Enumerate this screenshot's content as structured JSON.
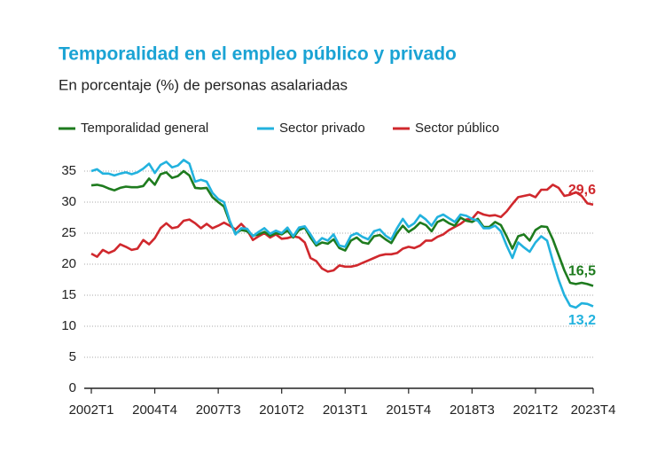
{
  "chart_data": {
    "type": "line",
    "title": "Temporalidad en el empleo público y privado",
    "subtitle": "En porcentaje (%) de personas asalariadas",
    "legend": "top",
    "grid": true,
    "ylim": [
      0,
      38
    ],
    "yticks": [
      0,
      5,
      10,
      15,
      20,
      25,
      30,
      35
    ],
    "categories": [
      "2002T1",
      null,
      null,
      null,
      null,
      null,
      null,
      null,
      null,
      null,
      null,
      "2004T4",
      null,
      null,
      null,
      null,
      null,
      null,
      null,
      null,
      null,
      null,
      "2007T3",
      null,
      null,
      null,
      null,
      null,
      null,
      null,
      null,
      null,
      null,
      "2010T2",
      null,
      null,
      null,
      null,
      null,
      null,
      null,
      null,
      null,
      null,
      "2013T1",
      null,
      null,
      null,
      null,
      null,
      null,
      null,
      null,
      null,
      null,
      "2015T4",
      null,
      null,
      null,
      null,
      null,
      null,
      null,
      null,
      null,
      null,
      "2018T3",
      null,
      null,
      null,
      null,
      null,
      null,
      null,
      null,
      null,
      null,
      "2021T2",
      null,
      null,
      null,
      null,
      null,
      null,
      null,
      null,
      null,
      "2023T4"
    ],
    "series": [
      {
        "name": "Temporalidad general",
        "color": "#1e7b1e",
        "values": [
          32.7,
          32.8,
          32.6,
          32.2,
          31.9,
          32.3,
          32.5,
          32.4,
          32.4,
          32.6,
          33.8,
          32.8,
          34.5,
          34.8,
          33.9,
          34.2,
          35.0,
          34.3,
          32.3,
          32.2,
          32.3,
          30.8,
          30.0,
          29.3,
          26.8,
          25.0,
          25.5,
          25.3,
          24.6,
          24.8,
          25.2,
          24.6,
          25.0,
          24.8,
          25.4,
          24.3,
          25.5,
          25.9,
          24.3,
          23.0,
          23.5,
          23.3,
          24.0,
          22.6,
          22.2,
          23.8,
          24.3,
          23.5,
          23.3,
          24.5,
          24.7,
          24.0,
          23.4,
          25.0,
          26.2,
          25.2,
          25.8,
          26.7,
          26.3,
          25.3,
          26.8,
          27.2,
          26.6,
          26.2,
          27.5,
          27.0,
          26.8,
          27.3,
          26.0,
          26.0,
          26.8,
          26.3,
          24.5,
          22.5,
          24.5,
          24.8,
          23.8,
          25.5,
          26.1,
          26.0,
          24.0,
          21.5,
          19.0,
          17.0,
          16.8,
          17.0,
          16.8,
          16.5
        ],
        "value_labels": [
          null,
          null,
          null,
          null,
          null,
          null,
          null,
          null,
          null,
          null,
          null,
          null,
          null,
          null,
          null,
          null,
          null,
          null,
          null,
          null,
          null,
          null,
          null,
          null,
          null,
          null,
          null,
          null,
          null,
          null,
          null,
          null,
          null,
          null,
          null,
          null,
          null,
          null,
          null,
          null,
          null,
          null,
          null,
          null,
          null,
          null,
          null,
          null,
          null,
          null,
          null,
          null,
          null,
          null,
          null,
          null,
          null,
          null,
          null,
          null,
          null,
          null,
          null,
          null,
          null,
          null,
          null,
          null,
          null,
          null,
          null,
          null,
          null,
          null,
          null,
          null,
          null,
          null,
          null,
          null,
          null,
          null,
          null,
          null,
          null,
          null,
          null,
          "16,5"
        ]
      },
      {
        "name": "Sector privado",
        "color": "#22b2de",
        "values": [
          35.0,
          35.3,
          34.6,
          34.6,
          34.3,
          34.6,
          34.8,
          34.5,
          34.8,
          35.4,
          36.2,
          34.7,
          36.0,
          36.5,
          35.6,
          35.9,
          36.8,
          36.2,
          33.3,
          33.6,
          33.3,
          31.5,
          30.5,
          30.0,
          27.0,
          24.8,
          25.8,
          25.7,
          24.5,
          25.2,
          25.8,
          24.9,
          25.4,
          25.0,
          25.9,
          24.5,
          25.9,
          26.1,
          24.8,
          23.3,
          24.2,
          23.8,
          24.8,
          23.0,
          22.8,
          24.6,
          25.0,
          24.4,
          24.0,
          25.3,
          25.6,
          24.6,
          24.0,
          25.8,
          27.3,
          26.0,
          26.6,
          27.9,
          27.2,
          26.2,
          27.6,
          28.0,
          27.4,
          26.8,
          28.0,
          27.8,
          27.3,
          27.0,
          25.8,
          25.8,
          26.2,
          25.3,
          23.0,
          21.0,
          23.5,
          22.7,
          22.0,
          23.5,
          24.5,
          23.8,
          20.5,
          17.5,
          15.0,
          13.3,
          13.0,
          13.7,
          13.6,
          13.2
        ],
        "value_labels": [
          null,
          null,
          null,
          null,
          null,
          null,
          null,
          null,
          null,
          null,
          null,
          null,
          null,
          null,
          null,
          null,
          null,
          null,
          null,
          null,
          null,
          null,
          null,
          null,
          null,
          null,
          null,
          null,
          null,
          null,
          null,
          null,
          null,
          null,
          null,
          null,
          null,
          null,
          null,
          null,
          null,
          null,
          null,
          null,
          null,
          null,
          null,
          null,
          null,
          null,
          null,
          null,
          null,
          null,
          null,
          null,
          null,
          null,
          null,
          null,
          null,
          null,
          null,
          null,
          null,
          null,
          null,
          null,
          null,
          null,
          null,
          null,
          null,
          null,
          null,
          null,
          null,
          null,
          null,
          null,
          null,
          null,
          null,
          null,
          null,
          null,
          null,
          "13,2"
        ]
      },
      {
        "name": "Sector público",
        "color": "#d0282d",
        "values": [
          21.7,
          21.2,
          22.3,
          21.8,
          22.2,
          23.2,
          22.8,
          22.3,
          22.5,
          23.9,
          23.2,
          24.2,
          25.8,
          26.6,
          25.8,
          26.0,
          27.0,
          27.2,
          26.6,
          25.8,
          26.5,
          25.8,
          26.2,
          26.7,
          26.2,
          25.6,
          26.5,
          25.5,
          23.9,
          24.5,
          25.0,
          24.3,
          24.8,
          24.1,
          24.2,
          24.5,
          24.3,
          23.5,
          21.0,
          20.5,
          19.3,
          18.8,
          19.0,
          19.8,
          19.6,
          19.6,
          19.8,
          20.2,
          20.6,
          21.0,
          21.4,
          21.6,
          21.6,
          21.8,
          22.5,
          22.8,
          22.6,
          23.0,
          23.8,
          23.8,
          24.4,
          24.8,
          25.5,
          26.0,
          26.5,
          27.2,
          27.3,
          28.4,
          28.0,
          27.8,
          27.9,
          27.6,
          28.5,
          29.7,
          30.8,
          31.0,
          31.2,
          30.8,
          32.0,
          32.0,
          32.8,
          32.3,
          31.0,
          31.2,
          31.6,
          31.0,
          29.8,
          29.6
        ],
        "value_labels": [
          null,
          null,
          null,
          null,
          null,
          null,
          null,
          null,
          null,
          null,
          null,
          null,
          null,
          null,
          null,
          null,
          null,
          null,
          null,
          null,
          null,
          null,
          null,
          null,
          null,
          null,
          null,
          null,
          null,
          null,
          null,
          null,
          null,
          null,
          null,
          null,
          null,
          null,
          null,
          null,
          null,
          null,
          null,
          null,
          null,
          null,
          null,
          null,
          null,
          null,
          null,
          null,
          null,
          null,
          null,
          null,
          null,
          null,
          null,
          null,
          null,
          null,
          null,
          null,
          null,
          null,
          null,
          null,
          null,
          null,
          null,
          null,
          null,
          null,
          null,
          null,
          null,
          null,
          null,
          null,
          null,
          null,
          null,
          null,
          null,
          null,
          null,
          "29,6"
        ]
      }
    ]
  }
}
